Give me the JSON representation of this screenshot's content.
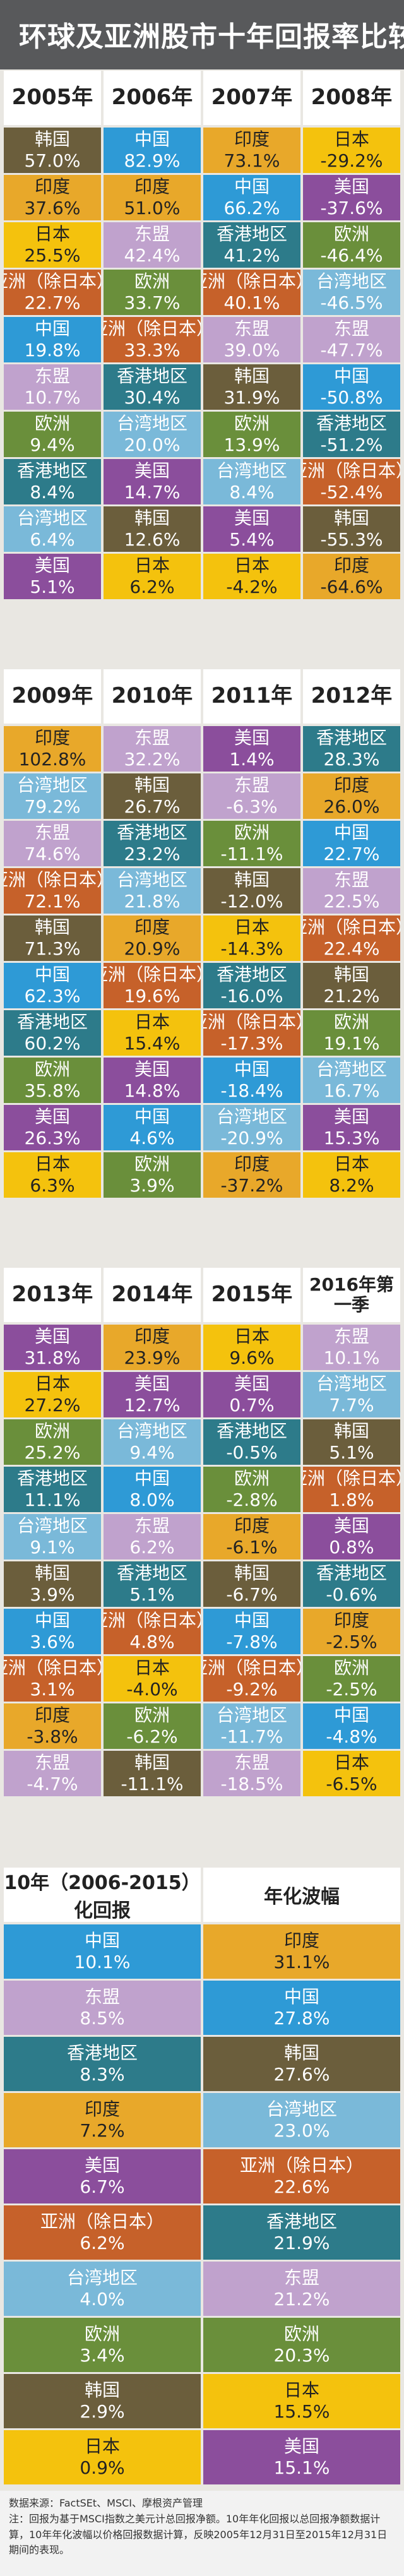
{
  "title": "环球及亚洲股市十年回报率比较",
  "colors": {
    "中国": "#2e9ad6",
    "印度": "#e8a82a",
    "美国": "#8b4e9c",
    "日本": "#f4c20d",
    "韩国": "#6b5e3c",
    "欧洲": "#6a8f3b",
    "亚洲（除日本）": "#c6612a",
    "东盟": "#c0a2cd",
    "香港地区": "#2d7b8a",
    "台湾地区": "#7ab9d9"
  },
  "dark_regions": [
    "日本",
    "印度"
  ],
  "chart_data": [
    {
      "type": "table",
      "columns": [
        {
          "year": "2005年",
          "rows": [
            {
              "region": "韩国",
              "value": "57.0%"
            },
            {
              "region": "印度",
              "value": "37.6%"
            },
            {
              "region": "日本",
              "value": "25.5%"
            },
            {
              "region": "亚洲（除日本）",
              "value": "22.7%"
            },
            {
              "region": "中国",
              "value": "19.8%"
            },
            {
              "region": "东盟",
              "value": "10.7%"
            },
            {
              "region": "欧洲",
              "value": "9.4%"
            },
            {
              "region": "香港地区",
              "value": "8.4%"
            },
            {
              "region": "台湾地区",
              "value": "6.4%"
            },
            {
              "region": "美国",
              "value": "5.1%"
            }
          ]
        },
        {
          "year": "2006年",
          "rows": [
            {
              "region": "中国",
              "value": "82.9%"
            },
            {
              "region": "印度",
              "value": "51.0%"
            },
            {
              "region": "东盟",
              "value": "42.4%"
            },
            {
              "region": "欧洲",
              "value": "33.7%"
            },
            {
              "region": "亚洲（除日本）",
              "value": "33.3%"
            },
            {
              "region": "香港地区",
              "value": "30.4%"
            },
            {
              "region": "台湾地区",
              "value": "20.0%"
            },
            {
              "region": "美国",
              "value": "14.7%"
            },
            {
              "region": "韩国",
              "value": "12.6%"
            },
            {
              "region": "日本",
              "value": "6.2%"
            }
          ]
        },
        {
          "year": "2007年",
          "rows": [
            {
              "region": "印度",
              "value": "73.1%"
            },
            {
              "region": "中国",
              "value": "66.2%"
            },
            {
              "region": "香港地区",
              "value": "41.2%"
            },
            {
              "region": "亚洲（除日本）",
              "value": "40.1%"
            },
            {
              "region": "东盟",
              "value": "39.0%"
            },
            {
              "region": "韩国",
              "value": "31.9%"
            },
            {
              "region": "欧洲",
              "value": "13.9%"
            },
            {
              "region": "台湾地区",
              "value": "8.4%"
            },
            {
              "region": "美国",
              "value": "5.4%"
            },
            {
              "region": "日本",
              "value": "-4.2%"
            }
          ]
        },
        {
          "year": "2008年",
          "rows": [
            {
              "region": "日本",
              "value": "-29.2%"
            },
            {
              "region": "美国",
              "value": "-37.6%"
            },
            {
              "region": "欧洲",
              "value": "-46.4%"
            },
            {
              "region": "台湾地区",
              "value": "-46.5%"
            },
            {
              "region": "东盟",
              "value": "-47.7%"
            },
            {
              "region": "中国",
              "value": "-50.8%"
            },
            {
              "region": "香港地区",
              "value": "-51.2%"
            },
            {
              "region": "亚洲（除日本）",
              "value": "-52.4%"
            },
            {
              "region": "韩国",
              "value": "-55.3%"
            },
            {
              "region": "印度",
              "value": "-64.6%"
            }
          ]
        },
        {
          "year": "2009年",
          "rows": [
            {
              "region": "印度",
              "value": "102.8%"
            },
            {
              "region": "台湾地区",
              "value": "79.2%"
            },
            {
              "region": "东盟",
              "value": "74.6%"
            },
            {
              "region": "亚洲（除日本）",
              "value": "72.1%"
            },
            {
              "region": "韩国",
              "value": "71.3%"
            },
            {
              "region": "中国",
              "value": "62.3%"
            },
            {
              "region": "香港地区",
              "value": "60.2%"
            },
            {
              "region": "欧洲",
              "value": "35.8%"
            },
            {
              "region": "美国",
              "value": "26.3%"
            },
            {
              "region": "日本",
              "value": "6.3%"
            }
          ]
        },
        {
          "year": "2010年",
          "rows": [
            {
              "region": "东盟",
              "value": "32.2%"
            },
            {
              "region": "韩国",
              "value": "26.7%"
            },
            {
              "region": "香港地区",
              "value": "23.2%"
            },
            {
              "region": "台湾地区",
              "value": "21.8%"
            },
            {
              "region": "印度",
              "value": "20.9%"
            },
            {
              "region": "亚洲（除日本）",
              "value": "19.6%"
            },
            {
              "region": "日本",
              "value": "15.4%"
            },
            {
              "region": "美国",
              "value": "14.8%"
            },
            {
              "region": "中国",
              "value": "4.6%"
            },
            {
              "region": "欧洲",
              "value": "3.9%"
            }
          ]
        },
        {
          "year": "2011年",
          "rows": [
            {
              "region": "美国",
              "value": "1.4%"
            },
            {
              "region": "东盟",
              "value": "-6.3%"
            },
            {
              "region": "欧洲",
              "value": "-11.1%"
            },
            {
              "region": "韩国",
              "value": "-12.0%"
            },
            {
              "region": "日本",
              "value": "-14.3%"
            },
            {
              "region": "香港地区",
              "value": "-16.0%"
            },
            {
              "region": "亚洲（除日本）",
              "value": "-17.3%"
            },
            {
              "region": "中国",
              "value": "-18.4%"
            },
            {
              "region": "台湾地区",
              "value": "-20.9%"
            },
            {
              "region": "印度",
              "value": "-37.2%"
            }
          ]
        },
        {
          "year": "2012年",
          "rows": [
            {
              "region": "香港地区",
              "value": "28.3%"
            },
            {
              "region": "印度",
              "value": "26.0%"
            },
            {
              "region": "中国",
              "value": "22.7%"
            },
            {
              "region": "东盟",
              "value": "22.5%"
            },
            {
              "region": "亚洲（除日本）",
              "value": "22.4%"
            },
            {
              "region": "韩国",
              "value": "21.2%"
            },
            {
              "region": "欧洲",
              "value": "19.1%"
            },
            {
              "region": "台湾地区",
              "value": "16.7%"
            },
            {
              "region": "美国",
              "value": "15.3%"
            },
            {
              "region": "日本",
              "value": "8.2%"
            }
          ]
        },
        {
          "year": "2013年",
          "rows": [
            {
              "region": "美国",
              "value": "31.8%"
            },
            {
              "region": "日本",
              "value": "27.2%"
            },
            {
              "region": "欧洲",
              "value": "25.2%"
            },
            {
              "region": "香港地区",
              "value": "11.1%"
            },
            {
              "region": "台湾地区",
              "value": "9.1%"
            },
            {
              "region": "韩国",
              "value": "3.9%"
            },
            {
              "region": "中国",
              "value": "3.6%"
            },
            {
              "region": "亚洲（除日本）",
              "value": "3.1%"
            },
            {
              "region": "印度",
              "value": "-3.8%"
            },
            {
              "region": "东盟",
              "value": "-4.7%"
            }
          ]
        },
        {
          "year": "2014年",
          "rows": [
            {
              "region": "印度",
              "value": "23.9%"
            },
            {
              "region": "美国",
              "value": "12.7%"
            },
            {
              "region": "台湾地区",
              "value": "9.4%"
            },
            {
              "region": "中国",
              "value": "8.0%"
            },
            {
              "region": "东盟",
              "value": "6.2%"
            },
            {
              "region": "香港地区",
              "value": "5.1%"
            },
            {
              "region": "亚洲（除日本）",
              "value": "4.8%"
            },
            {
              "region": "日本",
              "value": "-4.0%"
            },
            {
              "region": "欧洲",
              "value": "-6.2%"
            },
            {
              "region": "韩国",
              "value": "-11.1%"
            }
          ]
        },
        {
          "year": "2015年",
          "rows": [
            {
              "region": "日本",
              "value": "9.6%"
            },
            {
              "region": "美国",
              "value": "0.7%"
            },
            {
              "region": "香港地区",
              "value": "-0.5%"
            },
            {
              "region": "欧洲",
              "value": "-2.8%"
            },
            {
              "region": "印度",
              "value": "-6.1%"
            },
            {
              "region": "韩国",
              "value": "-6.7%"
            },
            {
              "region": "中国",
              "value": "-7.8%"
            },
            {
              "region": "亚洲（除日本）",
              "value": "-9.2%"
            },
            {
              "region": "台湾地区",
              "value": "-11.7%"
            },
            {
              "region": "东盟",
              "value": "-18.5%"
            }
          ]
        },
        {
          "year": "2016年第一季",
          "rows": [
            {
              "region": "东盟",
              "value": "10.1%"
            },
            {
              "region": "台湾地区",
              "value": "7.7%"
            },
            {
              "region": "韩国",
              "value": "5.1%"
            },
            {
              "region": "亚洲（除日本）",
              "value": "1.8%"
            },
            {
              "region": "美国",
              "value": "0.8%"
            },
            {
              "region": "香港地区",
              "value": "-0.6%"
            },
            {
              "region": "印度",
              "value": "-2.5%"
            },
            {
              "region": "欧洲",
              "value": "-2.5%"
            },
            {
              "region": "中国",
              "value": "-4.8%"
            },
            {
              "region": "日本",
              "value": "-6.5%"
            }
          ]
        }
      ]
    },
    {
      "type": "table",
      "columns": [
        {
          "header_line1": "10年（2006-2015）",
          "header_line2": "化回报",
          "rows": [
            {
              "region": "中国",
              "value": "10.1%"
            },
            {
              "region": "东盟",
              "value": "8.5%"
            },
            {
              "region": "香港地区",
              "value": "8.3%"
            },
            {
              "region": "印度",
              "value": "7.2%"
            },
            {
              "region": "美国",
              "value": "6.7%"
            },
            {
              "region": "亚洲（除日本）",
              "value": "6.2%"
            },
            {
              "region": "台湾地区",
              "value": "4.0%"
            },
            {
              "region": "欧洲",
              "value": "3.4%"
            },
            {
              "region": "韩国",
              "value": "2.9%"
            },
            {
              "region": "日本",
              "value": "0.9%"
            }
          ]
        },
        {
          "header_line1": "年化波幅",
          "header_line2": "",
          "rows": [
            {
              "region": "印度",
              "value": "31.1%"
            },
            {
              "region": "中国",
              "value": "27.8%"
            },
            {
              "region": "韩国",
              "value": "27.6%"
            },
            {
              "region": "台湾地区",
              "value": "23.0%"
            },
            {
              "region": "亚洲（除日本）",
              "value": "22.6%"
            },
            {
              "region": "香港地区",
              "value": "21.9%"
            },
            {
              "region": "东盟",
              "value": "21.2%"
            },
            {
              "region": "欧洲",
              "value": "20.3%"
            },
            {
              "region": "日本",
              "value": "15.5%"
            },
            {
              "region": "美国",
              "value": "15.1%"
            }
          ]
        }
      ]
    }
  ],
  "footer": {
    "source": "数据来源：FactSEt、MSCI、摩根资产管理",
    "note": "注：回报为基于MSCI指数之美元计总回报净额。10年年化回报以总回报净额数据计算，10年年化波幅以价格回报数据计算，反映2005年12月31日至2015年12月31日期间的表现。"
  }
}
